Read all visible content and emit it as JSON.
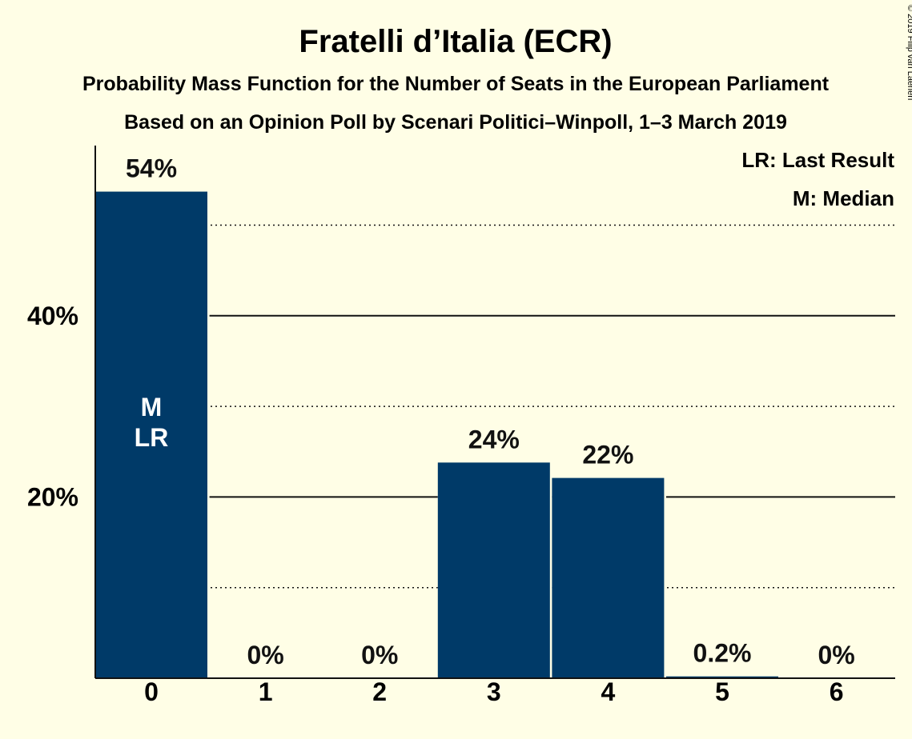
{
  "title": "Fratelli d’Italia (ECR)",
  "subtitle1": "Probability Mass Function for the Number of Seats in the European Parliament",
  "subtitle2": "Based on an Opinion Poll by Scenari Politici–Winpoll, 1–3 March 2019",
  "copyright": "© 2019 Filip van Laenen",
  "legend": {
    "last_result": "LR: Last Result",
    "median": "M: Median"
  },
  "colors": {
    "bar": "#003A68",
    "background": "#FFFEE6",
    "text": "#111111"
  },
  "chart_data": {
    "type": "bar",
    "categories": [
      "0",
      "1",
      "2",
      "3",
      "4",
      "5",
      "6"
    ],
    "values": [
      53.7,
      0,
      0,
      23.8,
      22.1,
      0.2,
      0
    ],
    "value_labels": [
      "54%",
      "0%",
      "0%",
      "24%",
      "22%",
      "0.2%",
      "0%"
    ],
    "bar_annotations": {
      "0": [
        "M",
        "LR"
      ]
    },
    "ylim": [
      0,
      58
    ],
    "yticks": [
      20,
      40
    ],
    "ytick_labels": [
      "20%",
      "40%"
    ],
    "minor_gridlines": [
      10,
      30,
      50
    ],
    "xlabel": "",
    "ylabel": "",
    "legend_position": "top-right"
  }
}
